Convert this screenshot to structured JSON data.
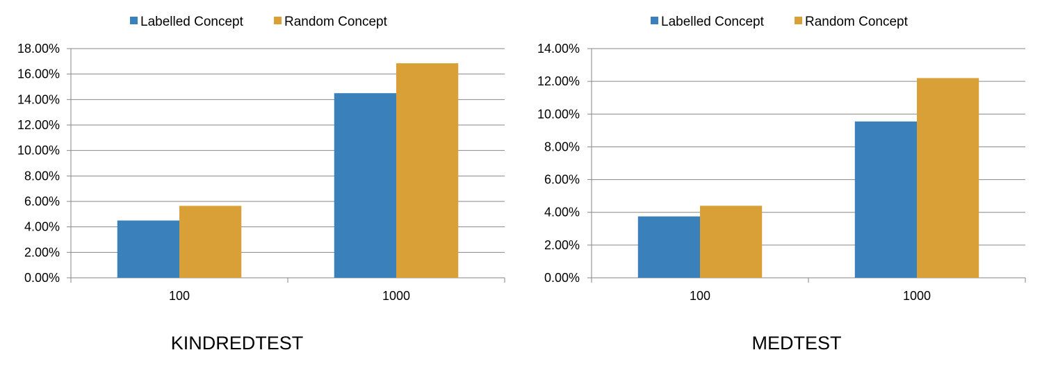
{
  "chart_data": [
    {
      "type": "bar",
      "title": "KINDREDTEST",
      "categories": [
        "100",
        "1000"
      ],
      "series": [
        {
          "name": "Labelled Concept",
          "values": [
            4.5,
            14.5
          ]
        },
        {
          "name": "Random Concept",
          "values": [
            5.65,
            16.85
          ]
        }
      ],
      "ylim": [
        0,
        18
      ],
      "ytick_step": 2,
      "ytick_labels": [
        "0.00%",
        "2.00%",
        "4.00%",
        "6.00%",
        "8.00%",
        "10.00%",
        "12.00%",
        "14.00%",
        "16.00%",
        "18.00%"
      ],
      "grid": true,
      "legend": "top"
    },
    {
      "type": "bar",
      "title": "MEDTEST",
      "categories": [
        "100",
        "1000"
      ],
      "series": [
        {
          "name": "Labelled Concept",
          "values": [
            3.75,
            9.55
          ]
        },
        {
          "name": "Random Concept",
          "values": [
            4.4,
            12.2
          ]
        }
      ],
      "ylim": [
        0,
        14
      ],
      "ytick_step": 2,
      "ytick_labels": [
        "0.00%",
        "2.00%",
        "4.00%",
        "6.00%",
        "8.00%",
        "10.00%",
        "12.00%",
        "14.00%"
      ],
      "grid": true,
      "legend": "top"
    }
  ],
  "colors": {
    "series": [
      "#3a80ba",
      "#d9a038"
    ],
    "gridline": "#868686",
    "axis": "#868686"
  }
}
